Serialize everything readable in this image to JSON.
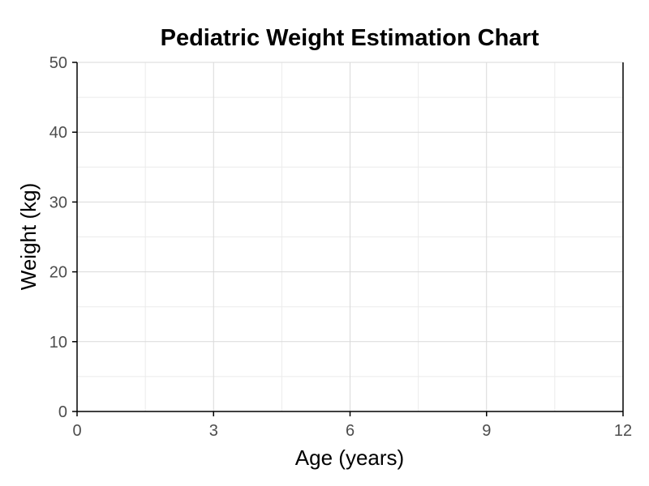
{
  "chart_data": {
    "type": "line",
    "title": "Pediatric Weight Estimation Chart",
    "xlabel": "Age (years)",
    "ylabel": "Weight (kg)",
    "xlim": [
      0,
      12
    ],
    "ylim": [
      0,
      50
    ],
    "x_ticks": [
      0,
      3,
      6,
      9,
      12
    ],
    "y_ticks": [
      0,
      10,
      20,
      30,
      40,
      50
    ],
    "x_minor_ticks": [
      1.5,
      4.5,
      7.5,
      10.5
    ],
    "y_minor_ticks": [
      5,
      15,
      25,
      35,
      45
    ],
    "grid": true,
    "series": [],
    "colors": {
      "background": "#ffffff",
      "major_grid": "#d9d9d9",
      "minor_grid": "#ebebeb",
      "axis_line": "#000000",
      "tick_label": "#4d4d4d",
      "text": "#000000"
    }
  }
}
